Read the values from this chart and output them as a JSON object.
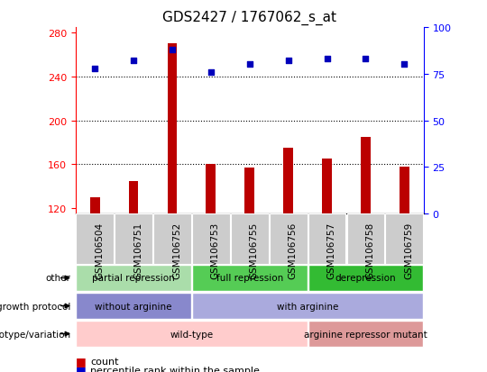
{
  "title": "GDS2427 / 1767062_s_at",
  "samples": [
    "GSM106504",
    "GSM106751",
    "GSM106752",
    "GSM106753",
    "GSM106755",
    "GSM106756",
    "GSM106757",
    "GSM106758",
    "GSM106759"
  ],
  "counts": [
    130,
    145,
    270,
    160,
    157,
    175,
    165,
    185,
    158
  ],
  "percentile_ranks_pct": [
    78,
    82,
    88,
    76,
    80,
    82,
    83,
    83,
    80
  ],
  "ylim_left": [
    115,
    285
  ],
  "ylim_right": [
    0,
    100
  ],
  "yticks_left": [
    120,
    160,
    200,
    240,
    280
  ],
  "yticks_right": [
    0,
    25,
    50,
    75,
    100
  ],
  "bar_color": "#bb0000",
  "dot_color": "#0000bb",
  "annotation_rows": [
    {
      "label": "other",
      "segments": [
        {
          "text": "partial repression",
          "start": 0,
          "end": 3,
          "color": "#aaddaa"
        },
        {
          "text": "full repression",
          "start": 3,
          "end": 6,
          "color": "#55cc55"
        },
        {
          "text": "derepression",
          "start": 6,
          "end": 9,
          "color": "#33bb33"
        }
      ]
    },
    {
      "label": "growth protocol",
      "segments": [
        {
          "text": "without arginine",
          "start": 0,
          "end": 3,
          "color": "#8888cc"
        },
        {
          "text": "with arginine",
          "start": 3,
          "end": 9,
          "color": "#aaaadd"
        }
      ]
    },
    {
      "label": "genotype/variation",
      "segments": [
        {
          "text": "wild-type",
          "start": 0,
          "end": 6,
          "color": "#ffcccc"
        },
        {
          "text": "arginine repressor mutant",
          "start": 6,
          "end": 9,
          "color": "#dd9999"
        }
      ]
    }
  ],
  "xtick_bg_color": "#cccccc",
  "bar_width": 0.25,
  "legend_count_color": "#cc0000",
  "legend_pct_color": "#0000cc"
}
